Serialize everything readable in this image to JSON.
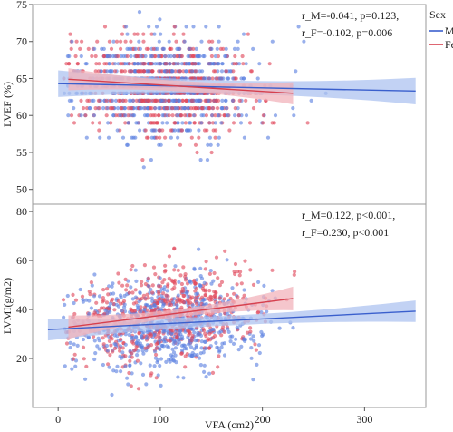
{
  "chart_data": [
    {
      "type": "scatter",
      "title": "",
      "xlabel": "",
      "ylabel": "LVEF (%)",
      "xlim": [
        -25,
        360
      ],
      "ylim": [
        48,
        75
      ],
      "x_ticks": [],
      "y_ticks": [
        50,
        55,
        60,
        65,
        70,
        75
      ],
      "grid": false,
      "annotation": [
        "r_M=-0.041, p=0.123,",
        "r_F=-0.102, p=0.006"
      ],
      "fits": [
        {
          "name": "Male",
          "x": [
            0,
            350
          ],
          "y": [
            64.3,
            63.3
          ]
        },
        {
          "name": "Female",
          "x": [
            10,
            230
          ],
          "y": [
            64.9,
            63.0
          ]
        }
      ]
    },
    {
      "type": "scatter",
      "title": "",
      "xlabel": "VFA (cm2)",
      "ylabel": "LVMI(g/m2)",
      "xlim": [
        -25,
        360
      ],
      "ylim": [
        0,
        83
      ],
      "x_ticks": [
        0,
        100,
        200,
        300
      ],
      "y_ticks": [
        20,
        40,
        60,
        80
      ],
      "grid": false,
      "annotation": [
        "r_M=0.122, p<0.001,",
        "r_F=0.230, p<0.001"
      ],
      "fits": [
        {
          "name": "Male",
          "x": [
            -10,
            350
          ],
          "y": [
            31.8,
            39.3
          ]
        },
        {
          "name": "Female",
          "x": [
            10,
            230
          ],
          "y": [
            32.8,
            44.5
          ]
        }
      ]
    }
  ],
  "legend": {
    "title": "Sex",
    "placement": "top-right, outside",
    "items": [
      {
        "name": "Male",
        "color": "#3a5fcd"
      },
      {
        "name": "Female",
        "color": "#d6404e"
      }
    ]
  },
  "colors": {
    "male_point": "#5b7fe0",
    "female_point": "#e0475a",
    "male_band": "#aec3f0",
    "female_band": "#f2b3bb"
  }
}
